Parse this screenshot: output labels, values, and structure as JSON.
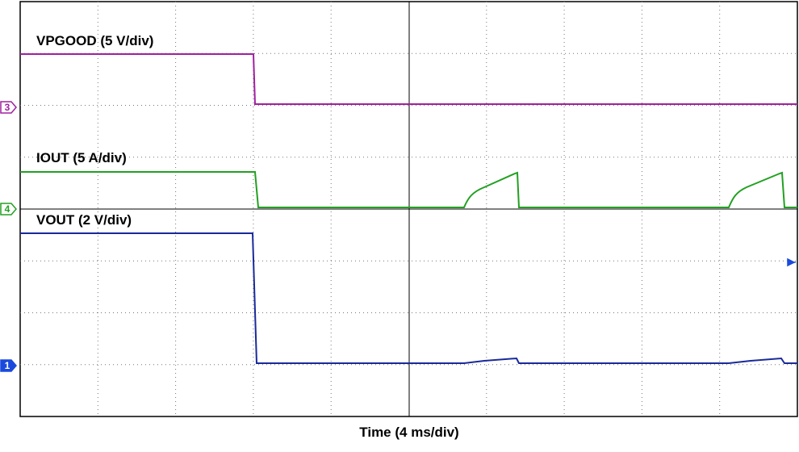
{
  "traces": [
    {
      "label": "VPGOOD (5 V/div)",
      "channel": "3"
    },
    {
      "label": "IOUT (5 A/div)",
      "channel": "4"
    },
    {
      "label": "VOUT (2 V/div)",
      "channel": "1"
    }
  ],
  "x_label": "Time (4 ms/div)"
}
